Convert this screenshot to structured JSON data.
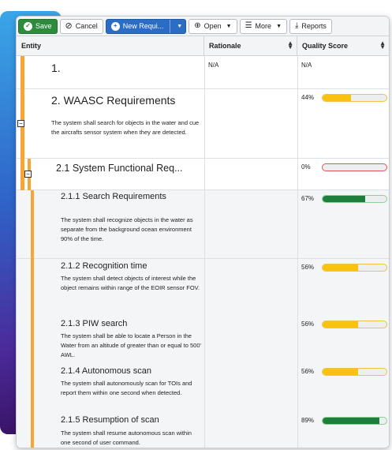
{
  "toolbar": {
    "save_label": "Save",
    "cancel_label": "Cancel",
    "new_label": "New Requi...",
    "open_label": "Open",
    "more_label": "More",
    "reports_label": "Reports"
  },
  "table": {
    "headers": {
      "entity": "Entity",
      "rationale": "Rationale",
      "quality": "Quality Score"
    },
    "rows": [
      {
        "title": "1.",
        "description": "",
        "rationale": "N/A",
        "quality": "N/A",
        "score": null
      },
      {
        "title": "2. WAASC Requirements",
        "description": "The system shall search for objects in the water and cue the aircrafts sensor system when they are detected.",
        "rationale": "",
        "quality": "44%",
        "score": 0.44
      },
      {
        "title": "2.1 System Functional Req...",
        "description": "",
        "rationale": "",
        "quality": "0%",
        "score": 0.0
      },
      {
        "title": "2.1.1 Search Requirements",
        "description": "The system shall recognize objects in the water as separate from the background ocean environment 90% of the time.",
        "rationale": "",
        "quality": "67%",
        "score": 0.67
      },
      {
        "title": "2.1.2 Recognition time",
        "description": "The system shall detect objects of interest while the object remains within range of the EOIR sensor FOV.",
        "rationale": "",
        "quality": "56%",
        "score": 0.56
      },
      {
        "title": "2.1.3 PIW search",
        "description": "The system shall be able to locate a Person in the Water from an altitude of greater than or equal to 500' AWL.",
        "rationale": "",
        "quality": "56%",
        "score": 0.56
      },
      {
        "title": "2.1.4 Autonomous scan",
        "description": "The system shall autonomously scan for TOIs and report them within one second when detected.",
        "rationale": "",
        "quality": "56%",
        "score": 0.56
      },
      {
        "title": "2.1.5 Resumption of scan",
        "description": "The system shall resume autonomous scan within one second of user command.",
        "rationale": "",
        "quality": "89%",
        "score": 0.89
      }
    ]
  },
  "colors": {
    "accent_orange": "#f7a633",
    "save_green": "#2e8b3e",
    "primary_blue": "#2b6cc4",
    "score_yellow": "#f8c20f",
    "score_green": "#1e7e3c"
  }
}
